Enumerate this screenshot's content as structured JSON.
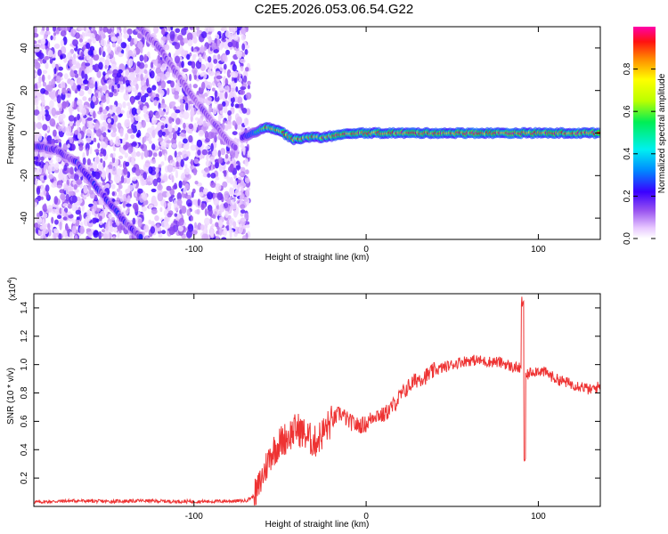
{
  "title": "C2E5.2026.053.06.54.G22",
  "chart_data": [
    {
      "type": "heatmap",
      "xlabel": "Height of straight line (km)",
      "ylabel": "Frequency (Hz)",
      "xlim": [
        -193,
        136
      ],
      "ylim": [
        -50,
        50
      ],
      "x_ticks": [
        -100,
        0,
        100
      ],
      "x_tick_labels": [
        "-100",
        "0",
        "100"
      ],
      "y_ticks": [
        -40,
        -20,
        0,
        20,
        40
      ],
      "y_tick_labels": [
        "-40",
        "-20",
        "0",
        "20",
        "40"
      ],
      "grid": false,
      "colorbar": {
        "label": "Normalized spectral amplitude",
        "range": [
          0,
          1
        ],
        "ticks": [
          0,
          0.2,
          0.4,
          0.6,
          0.8
        ],
        "tick_labels": [
          "0.0",
          "0.2",
          "0.4",
          "0.6",
          "0.8"
        ]
      },
      "noise_region_x": [
        -193,
        -68
      ],
      "tracks": [
        {
          "points": [
            [
              -193,
              -6
            ],
            [
              -180,
              -8
            ],
            [
              -168,
              -14
            ],
            [
              -160,
              -22
            ],
            [
              -150,
              -32
            ],
            [
              -140,
              -42
            ],
            [
              -130,
              -50
            ]
          ],
          "peak": 0.35
        },
        {
          "points": [
            [
              -132,
              50
            ],
            [
              -120,
              40
            ],
            [
              -110,
              28
            ],
            [
              -100,
              16
            ],
            [
              -90,
              6
            ],
            [
              -82,
              -2
            ],
            [
              -75,
              -8
            ]
          ],
          "peak": 0.25
        },
        {
          "points": [
            [
              -72,
              -2
            ],
            [
              -66,
              0
            ],
            [
              -58,
              3
            ],
            [
              -50,
              1
            ],
            [
              -42,
              -3
            ],
            [
              -34,
              -2
            ],
            [
              -26,
              -2
            ],
            [
              -16,
              -1
            ],
            [
              -6,
              0
            ],
            [
              0,
              0
            ],
            [
              20,
              0
            ],
            [
              60,
              0
            ],
            [
              90,
              0
            ],
            [
              136,
              0
            ]
          ],
          "peak": 1.0
        }
      ]
    },
    {
      "type": "line",
      "xlabel": "Height of straight line (km)",
      "ylabel": "SNR (10 * v/v)",
      "y_multiplier_label": "(x10",
      "y_multiplier_exp": "4",
      "xlim": [
        -193,
        136
      ],
      "ylim": [
        0,
        1.5
      ],
      "x_ticks": [
        -100,
        0,
        100
      ],
      "x_tick_labels": [
        "-100",
        "0",
        "100"
      ],
      "y_ticks": [
        0.2,
        0.4,
        0.6,
        0.8,
        1.0,
        1.2,
        1.4
      ],
      "y_tick_labels": [
        "0.2",
        "0.4",
        "0.6",
        "0.8",
        "1.0",
        "1.2",
        "1.4"
      ],
      "grid": false,
      "series": [
        {
          "color": "#ee3333",
          "x": [
            -193,
            -170,
            -150,
            -130,
            -110,
            -90,
            -70,
            -64,
            -60,
            -55,
            -50,
            -45,
            -40,
            -35,
            -30,
            -25,
            -20,
            -15,
            -10,
            -5,
            0,
            5,
            10,
            15,
            20,
            25,
            30,
            35,
            40,
            45,
            50,
            55,
            60,
            65,
            70,
            75,
            80,
            85,
            88,
            91,
            93,
            96,
            100,
            105,
            110,
            115,
            120,
            125,
            130,
            136
          ],
          "values": [
            0.03,
            0.04,
            0.035,
            0.04,
            0.035,
            0.035,
            0.04,
            0.08,
            0.22,
            0.38,
            0.45,
            0.5,
            0.55,
            0.5,
            0.45,
            0.52,
            0.6,
            0.66,
            0.6,
            0.57,
            0.58,
            0.65,
            0.64,
            0.7,
            0.78,
            0.85,
            0.9,
            0.92,
            0.96,
            0.98,
            1.0,
            1.02,
            1.03,
            1.03,
            1.02,
            1.02,
            1.01,
            0.98,
            0.98,
            0.96,
            0.92,
            0.95,
            0.96,
            0.94,
            0.9,
            0.88,
            0.86,
            0.85,
            0.82,
            0.85
          ]
        }
      ],
      "annotations": [
        {
          "x": 91,
          "value": 1.5,
          "note": "spike"
        },
        {
          "x": 92,
          "value": 0.3,
          "note": "dip"
        }
      ]
    }
  ]
}
